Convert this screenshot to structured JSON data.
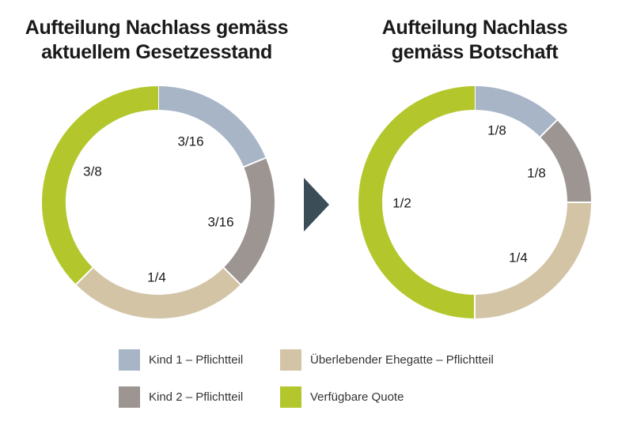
{
  "colors": {
    "kind1": "#a7b5c7",
    "kind2": "#9d9592",
    "ehegatte": "#d2c4a5",
    "quote": "#b3c72d",
    "arrow": "#3b4d57"
  },
  "legend": [
    {
      "key": "kind1",
      "label": "Kind 1 – Pflichtteil"
    },
    {
      "key": "ehegatte",
      "label": "Überlebender Ehegatte – Pflichtteil"
    },
    {
      "key": "kind2",
      "label": "Kind 2 – Pflichtteil"
    },
    {
      "key": "quote",
      "label": "Verfügbare Quote"
    }
  ],
  "chart_data": [
    {
      "type": "pie",
      "style": "donut",
      "title": [
        "Aufteilung Nachlass gemäss",
        "aktuellem Gesetzesstand"
      ],
      "slices": [
        {
          "key": "kind1",
          "name": "Kind 1 – Pflichtteil",
          "value": 0.1875,
          "label": "3/16"
        },
        {
          "key": "kind2",
          "name": "Kind 2 – Pflichtteil",
          "value": 0.1875,
          "label": "3/16"
        },
        {
          "key": "ehegatte",
          "name": "Überlebender Ehegatte – Pflichtteil",
          "value": 0.25,
          "label": "1/4"
        },
        {
          "key": "quote",
          "name": "Verfügbare Quote",
          "value": 0.375,
          "label": "3/8"
        }
      ]
    },
    {
      "type": "pie",
      "style": "donut",
      "title": [
        "Aufteilung Nachlass",
        "gemäss Botschaft"
      ],
      "slices": [
        {
          "key": "kind1",
          "name": "Kind 1 – Pflichtteil",
          "value": 0.125,
          "label": "1/8"
        },
        {
          "key": "kind2",
          "name": "Kind 2 – Pflichtteil",
          "value": 0.125,
          "label": "1/8"
        },
        {
          "key": "ehegatte",
          "name": "Überlebender Ehegatte – Pflichtteil",
          "value": 0.25,
          "label": "1/4"
        },
        {
          "key": "quote",
          "name": "Verfügbare Quote",
          "value": 0.5,
          "label": "1/2"
        }
      ]
    }
  ]
}
